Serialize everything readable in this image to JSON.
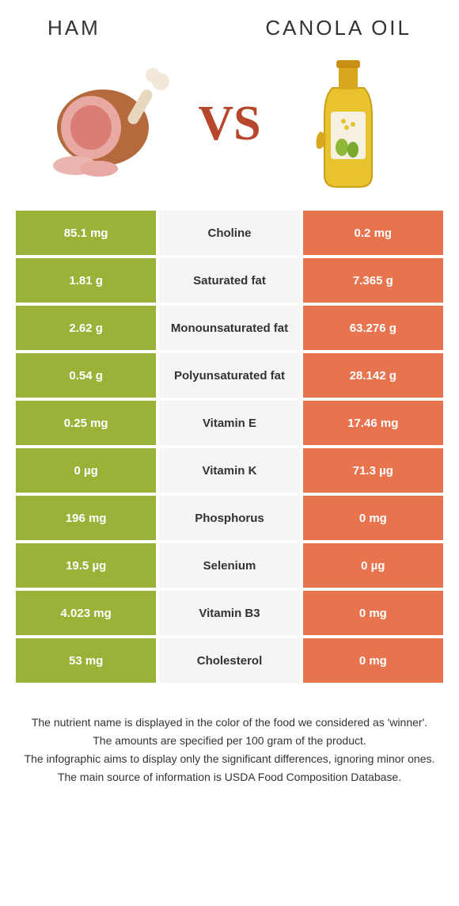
{
  "header": {
    "left_title": "HAM",
    "right_title": "CANOLA OIL",
    "vs_label": "VS"
  },
  "colors": {
    "green_bg": "#99b339",
    "orange_bg": "#e8744f",
    "light_bg": "#f5f5f5",
    "green_text": "#6f8f1f",
    "orange_text": "#d4552f",
    "vs_color": "#b7472a"
  },
  "rows": [
    {
      "left": "85.1 mg",
      "mid": "Choline",
      "right": "0.2 mg",
      "winner": "left"
    },
    {
      "left": "1.81 g",
      "mid": "Saturated fat",
      "right": "7.365 g",
      "winner": "left"
    },
    {
      "left": "2.62 g",
      "mid": "Monounsaturated fat",
      "right": "63.276 g",
      "winner": "right"
    },
    {
      "left": "0.54 g",
      "mid": "Polyunsaturated fat",
      "right": "28.142 g",
      "winner": "right"
    },
    {
      "left": "0.25 mg",
      "mid": "Vitamin E",
      "right": "17.46 mg",
      "winner": "right"
    },
    {
      "left": "0 µg",
      "mid": "Vitamin K",
      "right": "71.3 µg",
      "winner": "right"
    },
    {
      "left": "196 mg",
      "mid": "Phosphorus",
      "right": "0 mg",
      "winner": "left"
    },
    {
      "left": "19.5 µg",
      "mid": "Selenium",
      "right": "0 µg",
      "winner": "left"
    },
    {
      "left": "4.023 mg",
      "mid": "Vitamin B3",
      "right": "0 mg",
      "winner": "left"
    },
    {
      "left": "53 mg",
      "mid": "Cholesterol",
      "right": "0 mg",
      "winner": "right"
    }
  ],
  "footnotes": [
    "The nutrient name is displayed in the color of the food we considered as 'winner'.",
    "The amounts are specified per 100 gram of the product.",
    "The infographic aims to display only the significant differences, ignoring minor ones.",
    "The main source of information is USDA Food Composition Database."
  ]
}
